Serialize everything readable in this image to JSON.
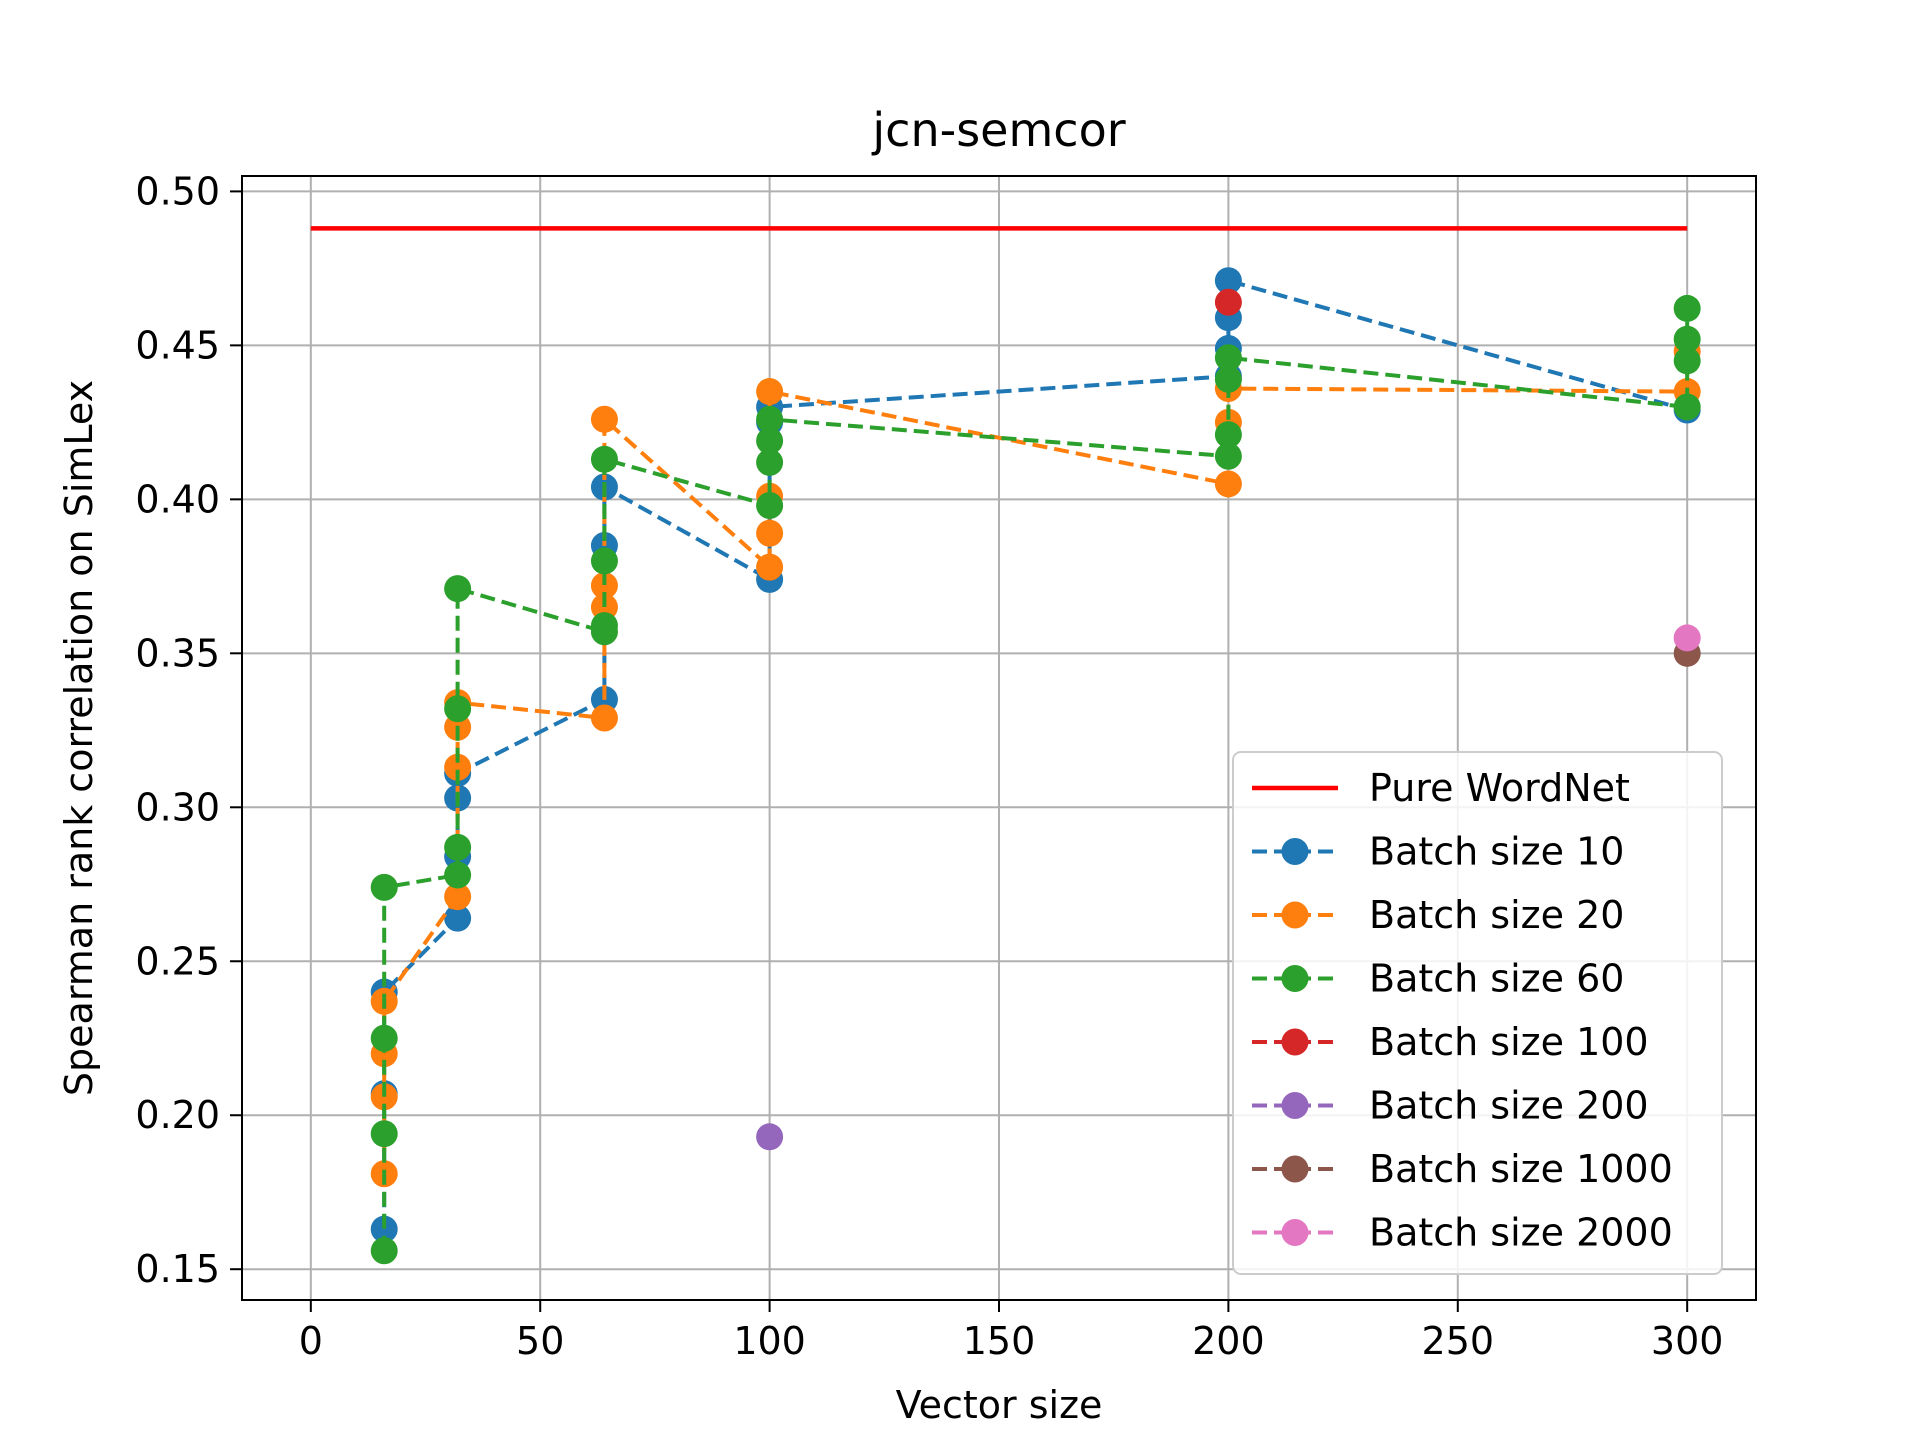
{
  "chart_data": {
    "type": "line",
    "title": "jcn-semcor",
    "xlabel": "Vector size",
    "ylabel": "Spearman rank correlation on SimLex",
    "xlim": [
      -15,
      315
    ],
    "ylim": [
      0.14,
      0.505
    ],
    "xticks": [
      0,
      50,
      100,
      150,
      200,
      250,
      300
    ],
    "yticks": [
      0.15,
      0.2,
      0.25,
      0.3,
      0.35,
      0.4,
      0.45,
      0.5
    ],
    "xtick_labels": [
      "0",
      "50",
      "100",
      "150",
      "200",
      "250",
      "300"
    ],
    "ytick_labels": [
      "0.15",
      "0.20",
      "0.25",
      "0.30",
      "0.35",
      "0.40",
      "0.45",
      "0.50"
    ],
    "grid": true,
    "legend_position": "lower-right",
    "reference_line": {
      "name": "Pure WordNet",
      "color": "#ff0000",
      "x": [
        0,
        300
      ],
      "y": [
        0.488,
        0.488
      ]
    },
    "series": [
      {
        "name": "Batch size 10",
        "color": "#1f77b4",
        "points": [
          [
            16,
            0.163
          ],
          [
            16,
            0.207
          ],
          [
            16,
            0.24
          ],
          [
            32,
            0.264
          ],
          [
            32,
            0.284
          ],
          [
            32,
            0.303
          ],
          [
            32,
            0.311
          ],
          [
            64,
            0.335
          ],
          [
            64,
            0.385
          ],
          [
            64,
            0.404
          ],
          [
            100,
            0.374
          ],
          [
            100,
            0.425
          ],
          [
            100,
            0.43
          ],
          [
            200,
            0.44
          ],
          [
            200,
            0.449
          ],
          [
            200,
            0.459
          ],
          [
            200,
            0.471
          ],
          [
            300,
            0.429
          ]
        ]
      },
      {
        "name": "Batch size 20",
        "color": "#ff7f0e",
        "points": [
          [
            16,
            0.181
          ],
          [
            16,
            0.206
          ],
          [
            16,
            0.22
          ],
          [
            16,
            0.237
          ],
          [
            32,
            0.271
          ],
          [
            32,
            0.313
          ],
          [
            32,
            0.326
          ],
          [
            32,
            0.334
          ],
          [
            64,
            0.329
          ],
          [
            64,
            0.365
          ],
          [
            64,
            0.372
          ],
          [
            64,
            0.426
          ],
          [
            100,
            0.378
          ],
          [
            100,
            0.389
          ],
          [
            100,
            0.401
          ],
          [
            100,
            0.435
          ],
          [
            200,
            0.405
          ],
          [
            200,
            0.425
          ],
          [
            200,
            0.436
          ],
          [
            300,
            0.435
          ],
          [
            300,
            0.448
          ]
        ]
      },
      {
        "name": "Batch size 60",
        "color": "#2ca02c",
        "points": [
          [
            16,
            0.156
          ],
          [
            16,
            0.194
          ],
          [
            16,
            0.225
          ],
          [
            16,
            0.274
          ],
          [
            32,
            0.278
          ],
          [
            32,
            0.287
          ],
          [
            32,
            0.332
          ],
          [
            32,
            0.371
          ],
          [
            64,
            0.357
          ],
          [
            64,
            0.359
          ],
          [
            64,
            0.38
          ],
          [
            64,
            0.413
          ],
          [
            100,
            0.398
          ],
          [
            100,
            0.412
          ],
          [
            100,
            0.419
          ],
          [
            100,
            0.426
          ],
          [
            200,
            0.414
          ],
          [
            200,
            0.421
          ],
          [
            200,
            0.439
          ],
          [
            200,
            0.446
          ],
          [
            300,
            0.43
          ],
          [
            300,
            0.445
          ],
          [
            300,
            0.452
          ],
          [
            300,
            0.462
          ]
        ]
      },
      {
        "name": "Batch size 100",
        "color": "#d62728",
        "points": [
          [
            200,
            0.464
          ]
        ]
      },
      {
        "name": "Batch size 200",
        "color": "#9467bd",
        "points": [
          [
            100,
            0.193
          ]
        ]
      },
      {
        "name": "Batch size 1000",
        "color": "#8c564b",
        "points": [
          [
            300,
            0.35
          ]
        ]
      },
      {
        "name": "Batch size 2000",
        "color": "#e377c2",
        "points": [
          [
            300,
            0.355
          ]
        ]
      }
    ]
  }
}
